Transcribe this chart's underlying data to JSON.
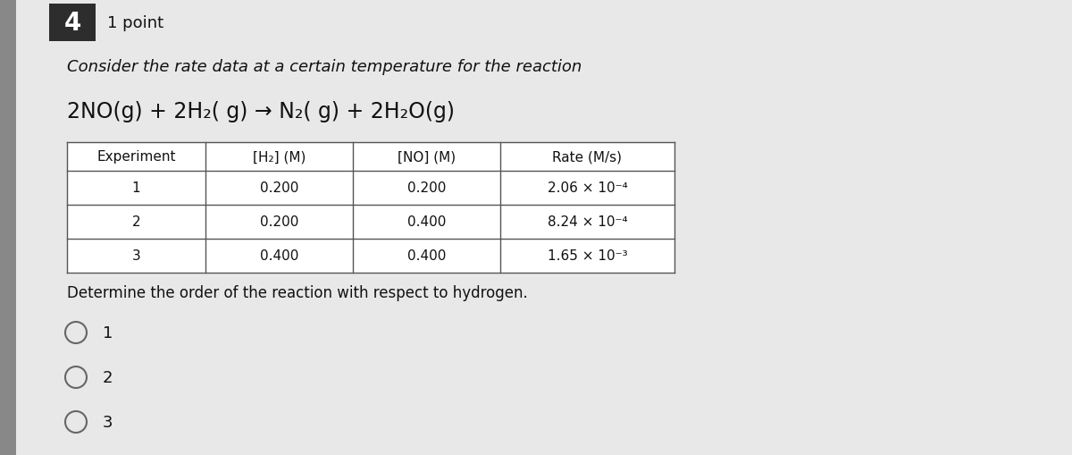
{
  "question_number": "4",
  "points": "1 point",
  "intro_text": "Consider the rate data at a certain temperature for the reaction",
  "equation": "2NO(g) + 2H₂( g) → N₂( g) + 2H₂O(g)",
  "table_headers": [
    "Experiment",
    "[H₂] (M)",
    "[NO] (M)",
    "Rate (M/s)"
  ],
  "table_data": [
    [
      "1",
      "0.200",
      "0.200",
      "2.06 × 10⁻⁴"
    ],
    [
      "2",
      "0.200",
      "0.400",
      "8.24 × 10⁻⁴"
    ],
    [
      "3",
      "0.400",
      "0.400",
      "1.65 × 10⁻³"
    ]
  ],
  "question_text": "Determine the order of the reaction with respect to hydrogen.",
  "options": [
    "1",
    "2",
    "3"
  ],
  "bg_color": "#cccccc",
  "page_color": "#e8e8e8",
  "white_color": "#ffffff",
  "dark_color": "#111111",
  "table_border_color": "#555555",
  "question_num_bg": "#2d2d2d",
  "question_num_fg": "#ffffff",
  "left_bar_color": "#888888"
}
